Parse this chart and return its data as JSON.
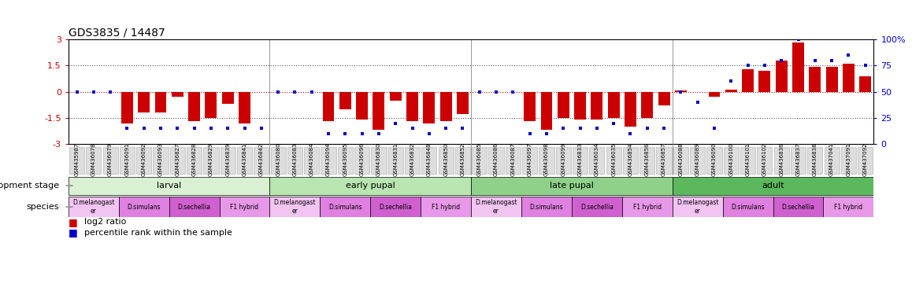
{
  "title": "GDS3835 / 14487",
  "samples": [
    "GSM435987",
    "GSM436078",
    "GSM436079",
    "GSM436091",
    "GSM436092",
    "GSM436093",
    "GSM436827",
    "GSM436828",
    "GSM436829",
    "GSM436839",
    "GSM436841",
    "GSM436842",
    "GSM436080",
    "GSM436083",
    "GSM436084",
    "GSM436094",
    "GSM436095",
    "GSM436096",
    "GSM436830",
    "GSM436831",
    "GSM436832",
    "GSM436848",
    "GSM436850",
    "GSM436852",
    "GSM436085",
    "GSM436086",
    "GSM436087",
    "GSM436097",
    "GSM436098",
    "GSM436099",
    "GSM436833",
    "GSM436034",
    "GSM436035",
    "GSM436854",
    "GSM436856",
    "GSM436857",
    "GSM436088",
    "GSM436089",
    "GSM436090",
    "GSM436100",
    "GSM436101",
    "GSM436102",
    "GSM436836",
    "GSM436837",
    "GSM436838",
    "GSM437041",
    "GSM437091",
    "GSM437092"
  ],
  "log2_ratio": [
    0.0,
    0.0,
    0.0,
    -1.8,
    -1.2,
    -1.2,
    -0.3,
    -1.7,
    -1.5,
    -0.7,
    -1.8,
    0.0,
    0.0,
    0.0,
    0.0,
    -1.7,
    -1.0,
    -1.6,
    -2.2,
    -0.5,
    -1.7,
    -1.8,
    -1.7,
    -1.3,
    0.0,
    0.0,
    0.0,
    -1.7,
    -2.2,
    -1.5,
    -1.6,
    -1.6,
    -1.5,
    -2.0,
    -1.5,
    -0.8,
    0.05,
    0.0,
    -0.3,
    0.1,
    1.3,
    1.2,
    1.8,
    2.8,
    1.4,
    1.4,
    1.6,
    0.9
  ],
  "percentile": [
    50,
    50,
    50,
    15,
    15,
    15,
    15,
    15,
    15,
    15,
    15,
    15,
    50,
    50,
    50,
    10,
    10,
    10,
    10,
    20,
    15,
    10,
    15,
    15,
    50,
    50,
    50,
    10,
    10,
    15,
    15,
    15,
    20,
    10,
    15,
    15,
    50,
    40,
    15,
    60,
    75,
    75,
    80,
    100,
    80,
    80,
    85,
    75
  ],
  "dev_stages": [
    {
      "label": "larval",
      "start": 0,
      "end": 12,
      "color": "#d9f0d3"
    },
    {
      "label": "early pupal",
      "start": 12,
      "end": 24,
      "color": "#b8e5b0"
    },
    {
      "label": "late pupal",
      "start": 24,
      "end": 36,
      "color": "#8fd18a"
    },
    {
      "label": "adult",
      "start": 36,
      "end": 48,
      "color": "#5cb85c"
    }
  ],
  "species_groups": [
    {
      "label": "D.melanogast\ner",
      "start": 0,
      "end": 3,
      "color": "#f2c4f2"
    },
    {
      "label": "D.simulans",
      "start": 3,
      "end": 6,
      "color": "#e080e0"
    },
    {
      "label": "D.sechellia",
      "start": 6,
      "end": 9,
      "color": "#d060d0"
    },
    {
      "label": "F1 hybrid",
      "start": 9,
      "end": 12,
      "color": "#e898e8"
    },
    {
      "label": "D.melanogast\ner",
      "start": 12,
      "end": 15,
      "color": "#f2c4f2"
    },
    {
      "label": "D.simulans",
      "start": 15,
      "end": 18,
      "color": "#e080e0"
    },
    {
      "label": "D.sechellia",
      "start": 18,
      "end": 21,
      "color": "#d060d0"
    },
    {
      "label": "F1 hybrid",
      "start": 21,
      "end": 24,
      "color": "#e898e8"
    },
    {
      "label": "D.melanogast\ner",
      "start": 24,
      "end": 27,
      "color": "#f2c4f2"
    },
    {
      "label": "D.simulans",
      "start": 27,
      "end": 30,
      "color": "#e080e0"
    },
    {
      "label": "D.sechellia",
      "start": 30,
      "end": 33,
      "color": "#d060d0"
    },
    {
      "label": "F1 hybrid",
      "start": 33,
      "end": 36,
      "color": "#e898e8"
    },
    {
      "label": "D.melanogast\ner",
      "start": 36,
      "end": 39,
      "color": "#f2c4f2"
    },
    {
      "label": "D.simulans",
      "start": 39,
      "end": 42,
      "color": "#e080e0"
    },
    {
      "label": "D.sechellia",
      "start": 42,
      "end": 45,
      "color": "#d060d0"
    },
    {
      "label": "F1 hybrid",
      "start": 45,
      "end": 48,
      "color": "#e898e8"
    }
  ],
  "bar_color": "#cc0000",
  "dot_color": "#0000cc",
  "ylim": [
    -3,
    3
  ],
  "y2lim": [
    0,
    100
  ],
  "yticks": [
    -3,
    -1.5,
    0,
    1.5,
    3
  ],
  "ytick_labels": [
    "-3",
    "-1.5",
    "0",
    "1.5",
    "3"
  ],
  "y2ticks": [
    0,
    25,
    50,
    75,
    100
  ],
  "y2tick_labels": [
    "0",
    "25",
    "50",
    "75",
    "100%"
  ],
  "background_color": "#ffffff",
  "xtick_box_color": "#dddddd",
  "group_divider_color": "#888888"
}
